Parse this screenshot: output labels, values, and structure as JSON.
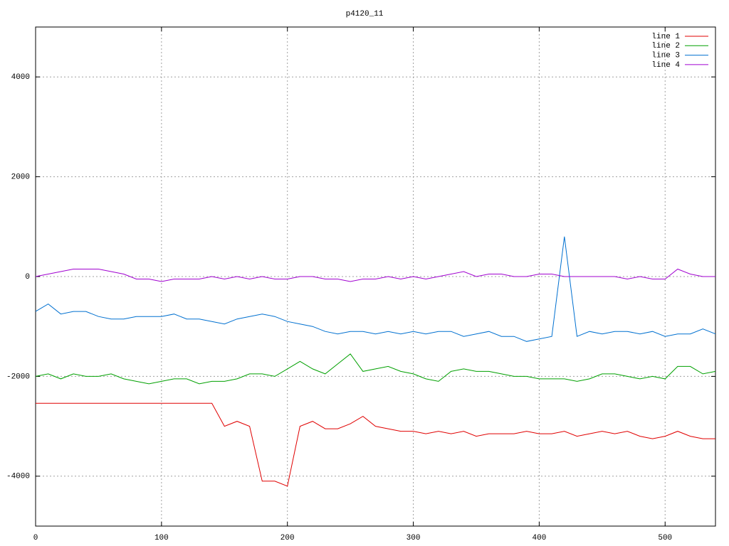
{
  "chart_data": {
    "type": "line",
    "title": "p4120_11",
    "x": [
      0,
      10,
      20,
      30,
      40,
      50,
      60,
      70,
      80,
      90,
      100,
      110,
      120,
      130,
      140,
      150,
      160,
      170,
      180,
      190,
      200,
      210,
      220,
      230,
      240,
      250,
      260,
      270,
      280,
      290,
      300,
      310,
      320,
      330,
      340,
      350,
      360,
      370,
      380,
      390,
      400,
      410,
      420,
      430,
      440,
      450,
      460,
      470,
      480,
      490,
      500,
      510,
      520,
      530,
      540
    ],
    "series": [
      {
        "name": "line 1",
        "color": "#e00000",
        "values": [
          -2540,
          -2540,
          -2540,
          -2540,
          -2540,
          -2540,
          -2540,
          -2540,
          -2540,
          -2540,
          -2540,
          -2540,
          -2540,
          -2540,
          -2540,
          -3000,
          -2900,
          -3000,
          -4100,
          -4100,
          -4200,
          -3000,
          -2900,
          -3050,
          -3050,
          -2950,
          -2800,
          -3000,
          -3050,
          -3100,
          -3100,
          -3150,
          -3100,
          -3150,
          -3100,
          -3200,
          -3150,
          -3150,
          -3150,
          -3100,
          -3150,
          -3150,
          -3100,
          -3200,
          -3150,
          -3100,
          -3150,
          -3100,
          -3200,
          -3250,
          -3200,
          -3100,
          -3200,
          -3250,
          -3250
        ]
      },
      {
        "name": "line 2",
        "color": "#00a000",
        "values": [
          -2000,
          -1950,
          -2050,
          -1950,
          -2000,
          -2000,
          -1950,
          -2050,
          -2100,
          -2150,
          -2100,
          -2050,
          -2050,
          -2150,
          -2100,
          -2100,
          -2050,
          -1950,
          -1950,
          -2000,
          -1850,
          -1700,
          -1850,
          -1950,
          -1750,
          -1550,
          -1900,
          -1850,
          -1800,
          -1900,
          -1950,
          -2050,
          -2100,
          -1900,
          -1850,
          -1900,
          -1900,
          -1950,
          -2000,
          -2000,
          -2050,
          -2050,
          -2050,
          -2100,
          -2050,
          -1950,
          -1950,
          -2000,
          -2050,
          -2000,
          -2050,
          -1800,
          -1800,
          -1950,
          -1900
        ]
      },
      {
        "name": "line 3",
        "color": "#0070d0",
        "values": [
          -700,
          -550,
          -750,
          -700,
          -700,
          -800,
          -850,
          -850,
          -800,
          -800,
          -800,
          -750,
          -850,
          -850,
          -900,
          -950,
          -850,
          -800,
          -750,
          -800,
          -900,
          -950,
          -1000,
          -1100,
          -1150,
          -1100,
          -1100,
          -1150,
          -1100,
          -1150,
          -1100,
          -1150,
          -1100,
          -1100,
          -1200,
          -1150,
          -1100,
          -1200,
          -1200,
          -1300,
          -1250,
          -1200,
          800,
          -1200,
          -1100,
          -1150,
          -1100,
          -1100,
          -1150,
          -1100,
          -1200,
          -1150,
          -1150,
          -1050,
          -1150
        ]
      },
      {
        "name": "line 4",
        "color": "#a000d0",
        "values": [
          0,
          50,
          100,
          150,
          150,
          150,
          100,
          50,
          -50,
          -50,
          -100,
          -50,
          -50,
          -50,
          0,
          -50,
          0,
          -50,
          0,
          -50,
          -50,
          0,
          0,
          -50,
          -50,
          -100,
          -50,
          -50,
          0,
          -50,
          0,
          -50,
          0,
          50,
          100,
          0,
          50,
          50,
          0,
          0,
          50,
          50,
          0,
          0,
          0,
          0,
          0,
          -50,
          0,
          -50,
          -50,
          150,
          50,
          0,
          0
        ]
      }
    ],
    "xlim": [
      0,
      540
    ],
    "ylim": [
      -5000,
      5000
    ],
    "xticks": [
      0,
      100,
      200,
      300,
      400,
      500
    ],
    "yticks": [
      -4000,
      -2000,
      0,
      2000,
      4000
    ],
    "grid": true,
    "legend": "top-right"
  }
}
